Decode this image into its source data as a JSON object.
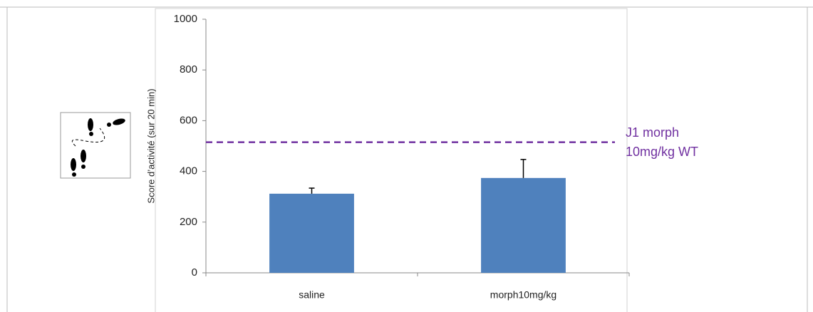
{
  "chart_data": {
    "type": "bar",
    "ylabel": "Score d’activité (sur 20 min)",
    "categories": [
      "saline",
      "morph10mg/kg"
    ],
    "values": [
      312,
      374
    ],
    "errors": [
      22,
      73
    ],
    "color": "#4f81bd",
    "ylim": [
      0,
      1000
    ],
    "yticks": [
      0,
      200,
      400,
      600,
      800,
      1000
    ],
    "reference_value": 515,
    "reference_color": "#7030a0",
    "annotation": [
      "J1 morph",
      "10mg/kg WT"
    ]
  }
}
